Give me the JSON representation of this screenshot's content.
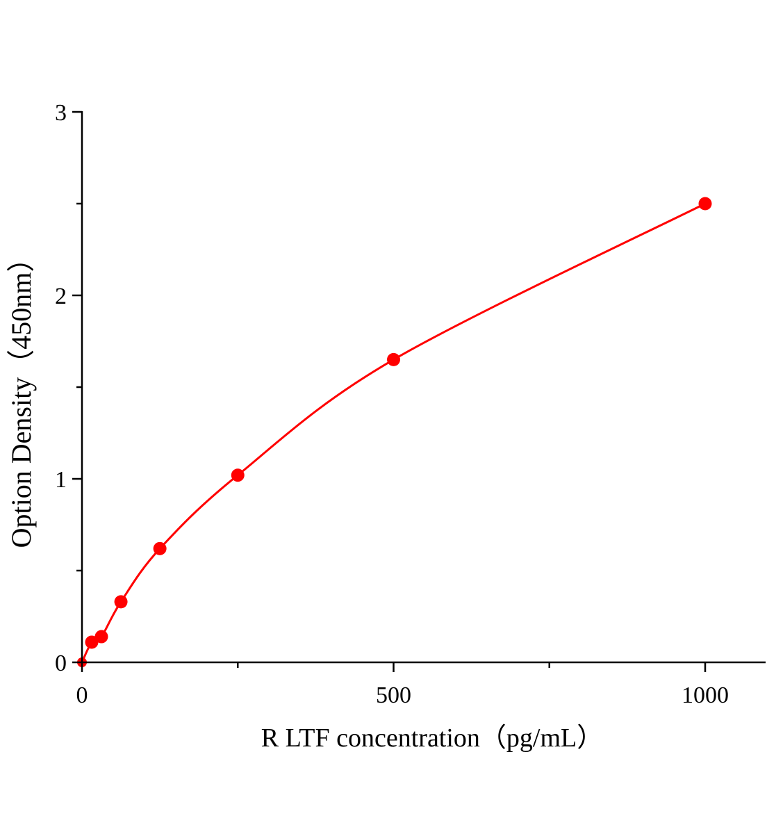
{
  "chart_data": {
    "type": "scatter",
    "title": "",
    "xlabel": "R LTF  concentration（pg/mL）",
    "ylabel": "Option Density（450nm）",
    "xlim": [
      0,
      1100
    ],
    "ylim": [
      0,
      3
    ],
    "x_ticks": [
      0,
      500,
      1000
    ],
    "y_ticks": [
      0,
      1,
      2,
      3
    ],
    "grid": false,
    "legend": "none",
    "series": [
      {
        "color": "#ff0000",
        "points": [
          {
            "x": 0,
            "y": 0
          },
          {
            "x": 15.6,
            "y": 0.11
          },
          {
            "x": 31.2,
            "y": 0.14
          },
          {
            "x": 62.5,
            "y": 0.33
          },
          {
            "x": 125,
            "y": 0.62
          },
          {
            "x": 250,
            "y": 1.02
          },
          {
            "x": 500,
            "y": 1.65
          },
          {
            "x": 1000,
            "y": 2.5
          }
        ],
        "fit_line": true
      }
    ]
  }
}
